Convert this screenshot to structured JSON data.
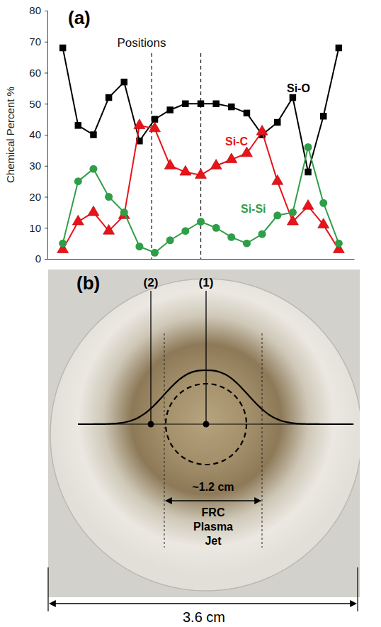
{
  "chart_data": {
    "type": "line",
    "title": "(a)",
    "annotation": "Positions",
    "y_label": "Chemical Percent %",
    "x": [
      0,
      1,
      2,
      3,
      4,
      5,
      6,
      7,
      8,
      9,
      10,
      11,
      12,
      13,
      14,
      15,
      16,
      17,
      18
    ],
    "xlim": [
      -1,
      19
    ],
    "ylim": [
      0,
      80
    ],
    "yticks": [
      0,
      10,
      20,
      30,
      40,
      50,
      60,
      70,
      80
    ],
    "tick_labels": "y",
    "vlines": [
      5.8,
      9
    ],
    "series": [
      {
        "name": "Si-O",
        "color": "#000000",
        "marker": "square",
        "values": [
          68,
          43,
          40,
          52,
          57,
          38,
          45,
          48,
          50,
          50,
          50,
          49,
          47,
          40,
          44,
          52,
          28,
          46,
          68
        ]
      },
      {
        "name": "Si-C",
        "color": "#e8141b",
        "marker": "triangle",
        "values": [
          3,
          12,
          15,
          9,
          14,
          43,
          42,
          30,
          28,
          27,
          30,
          32,
          34,
          41,
          25,
          12,
          17,
          11,
          3
        ]
      },
      {
        "name": "Si-Si",
        "color": "#2f9e48",
        "marker": "circle",
        "values": [
          5,
          25,
          29,
          20,
          15,
          4,
          2,
          6,
          9,
          12,
          10,
          7,
          5,
          8,
          14,
          15,
          36,
          18,
          5
        ]
      }
    ]
  },
  "diagram": {
    "label": "(b)",
    "markers": [
      "(2)",
      "(1)"
    ],
    "jet_width": "~1.2 cm",
    "jet_label": "FRC Plasma Jet",
    "diameter": "3.6 cm"
  }
}
